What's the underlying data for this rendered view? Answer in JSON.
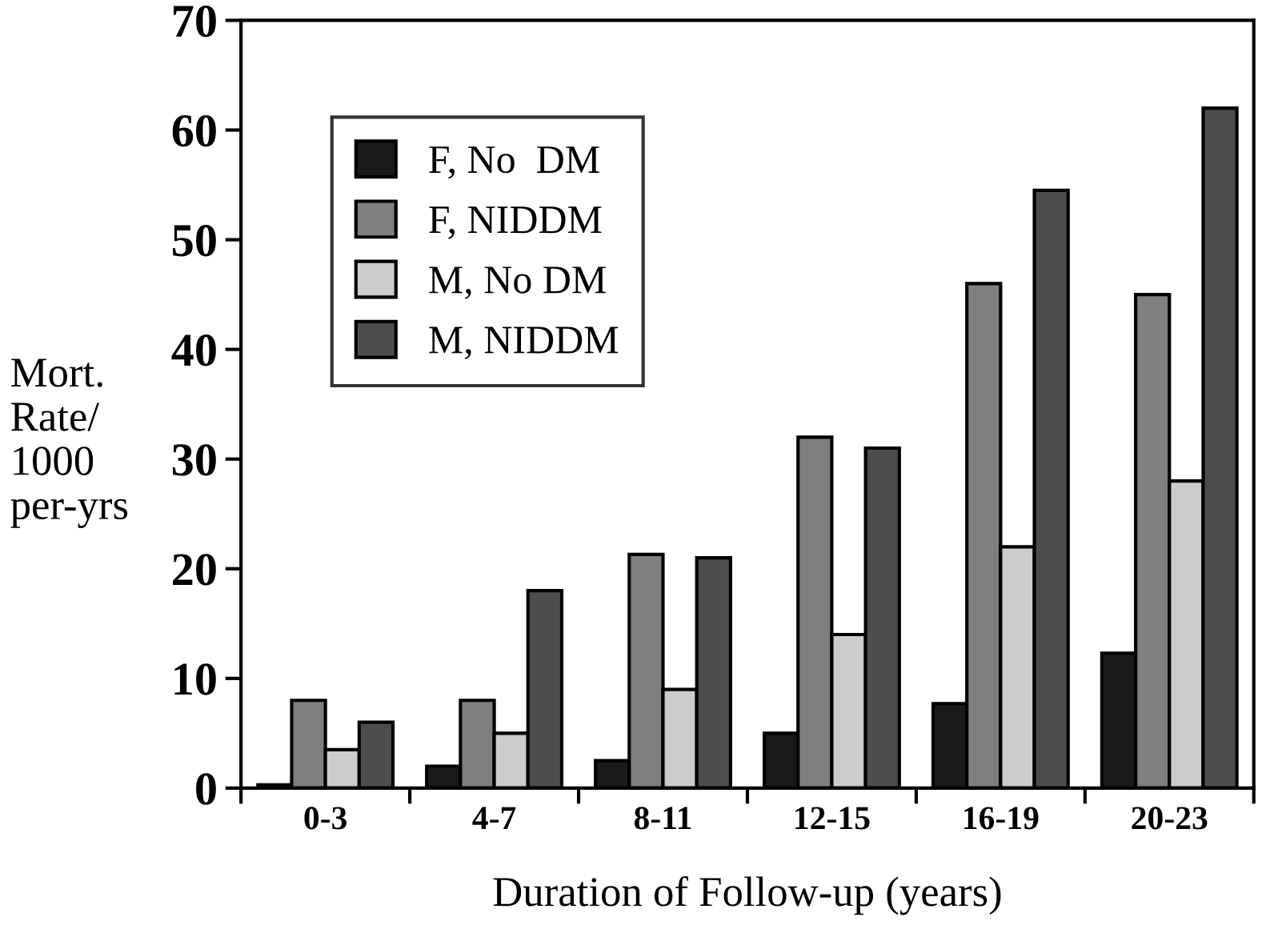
{
  "chart_data": {
    "type": "bar",
    "xlabel": "Duration of Follow-up (years)",
    "ylabel": "Mort.\nRate/\n1000\nper-yrs",
    "categories": [
      "0-3",
      "4-7",
      "8-11",
      "12-15",
      "16-19",
      "20-23"
    ],
    "series": [
      {
        "name": "F, No  DM",
        "color": "#1a1a1a",
        "values": [
          0.3,
          2,
          2.5,
          5,
          7.7,
          12.3
        ]
      },
      {
        "name": "F, NIDDM",
        "color": "#7f7f7f",
        "values": [
          8,
          8,
          21.3,
          32,
          46,
          45
        ]
      },
      {
        "name": "M, No DM",
        "color": "#cccccc",
        "values": [
          3.5,
          5,
          9,
          14,
          22,
          28
        ]
      },
      {
        "name": "M, NIDDM",
        "color": "#4d4d4d",
        "values": [
          6,
          18,
          21,
          31,
          54.5,
          62
        ]
      }
    ],
    "ylim": [
      0,
      70
    ],
    "yticks": [
      0,
      10,
      20,
      30,
      40,
      50,
      60,
      70
    ],
    "grid": false,
    "legend": "top left"
  }
}
